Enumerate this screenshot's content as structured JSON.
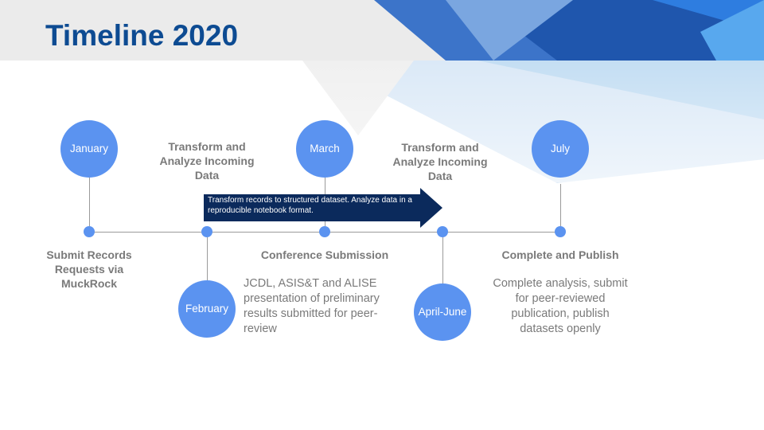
{
  "title": "Timeline 2020",
  "milestones": [
    {
      "circle": "January",
      "label": "Submit Records Requests via MuckRock"
    },
    {
      "circle": "February",
      "label": "Transform and Analyze Incoming Data",
      "description": "JCDL, ASIS&T and ALISE presentation of preliminary results submitted for peer-review"
    },
    {
      "circle": "March",
      "label": "Conference Submission"
    },
    {
      "circle": "April-June",
      "label": "Transform and Analyze Incoming Data"
    },
    {
      "circle": "July",
      "label": "Complete and Publish",
      "description": "Complete analysis, submit for peer-reviewed publication, publish datasets openly"
    }
  ],
  "arrow_text": "Transform records to structured dataset. Analyze data in a reproducible notebook format.",
  "colors": {
    "title": "#0d4b92",
    "circle": "#5b93f0",
    "arrow": "#0b2a5c",
    "text": "#7a7a7a"
  }
}
